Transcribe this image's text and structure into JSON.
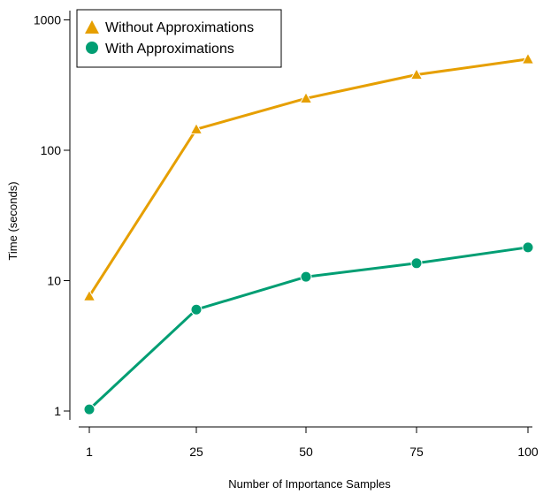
{
  "chart_data": {
    "type": "line",
    "title": "",
    "xlabel": "Number of Importance Samples",
    "ylabel": "Time (seconds)",
    "x": [
      1,
      25,
      50,
      75,
      100
    ],
    "xticks": [
      "1",
      "25",
      "50",
      "75",
      "100"
    ],
    "yscale": "log",
    "ylim": [
      1,
      1000
    ],
    "yticks": [
      1,
      10,
      100,
      1000
    ],
    "yticklabels": [
      "1",
      "10",
      "100",
      "1000"
    ],
    "grid": false,
    "legend": "top-left",
    "series": [
      {
        "name": "Without Approximations",
        "marker": "triangle",
        "color": "#e69f00",
        "values": [
          7.6,
          145,
          250,
          380,
          500
        ]
      },
      {
        "name": "With Approximations",
        "marker": "circle",
        "color": "#009e73",
        "values": [
          1.03,
          6.0,
          10.7,
          13.6,
          18.0
        ]
      }
    ]
  }
}
